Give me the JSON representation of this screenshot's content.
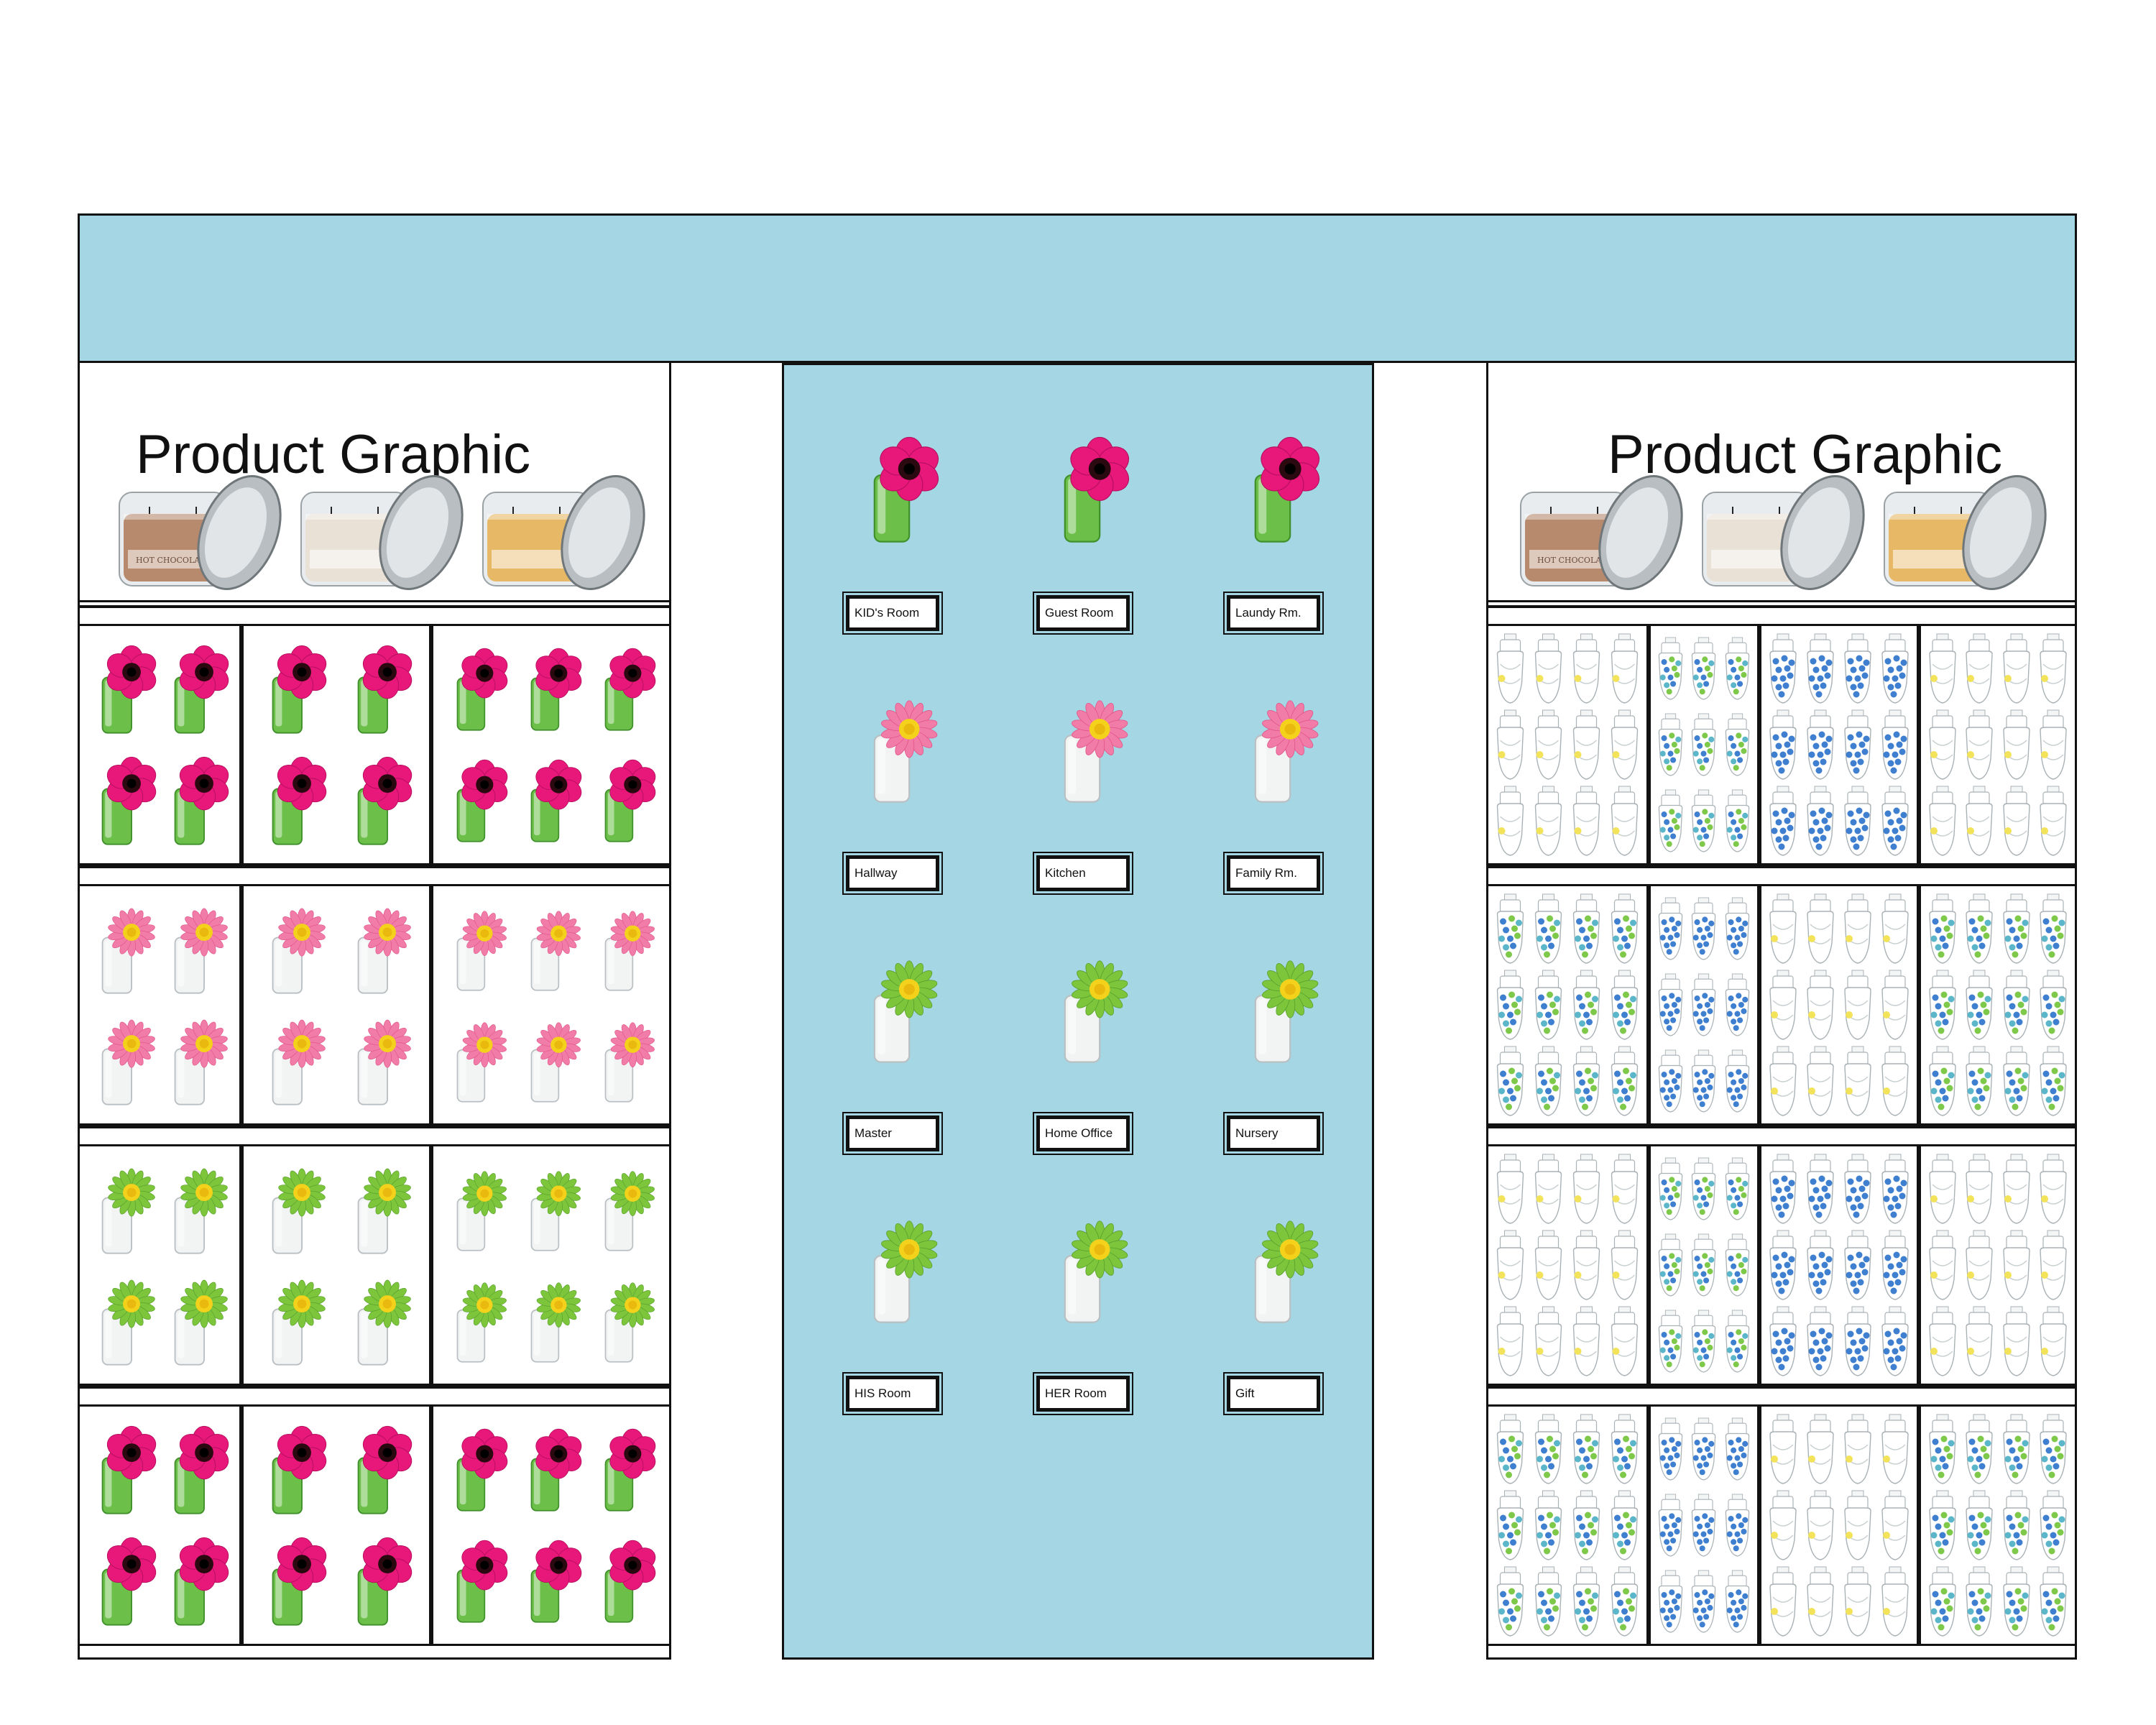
{
  "colors": {
    "panel_blue": "#a4d6e3",
    "outline": "#111111",
    "magenta_flower": "#e8177a",
    "magenta_center": "#2a0a10",
    "pink_flower": "#f27ca8",
    "yellow_center": "#f4d21c",
    "green_flower": "#7dc63c",
    "green_body": "#6cc04a",
    "white_body": "#f2f4f4",
    "refill_blue": "#3f7fd0",
    "refill_green": "#7ec84a",
    "refill_yellow": "#f2e35a"
  },
  "left_graphic": {
    "title": "Product Graphic",
    "jars": [
      {
        "name": "brown-candle-jar",
        "icon": "candle-jar-icon",
        "wax": "#b7896d",
        "label_text": "HOT CHOCOLATE"
      },
      {
        "name": "cream-candle-jar",
        "icon": "candle-jar-icon",
        "wax": "#e9e1d6",
        "label_text": ""
      },
      {
        "name": "gold-candle-jar",
        "icon": "candle-jar-icon",
        "wax": "#e7b966",
        "label_text": ""
      }
    ]
  },
  "right_graphic": {
    "title": "Product Graphic",
    "jars": [
      {
        "name": "brown-candle-jar",
        "icon": "candle-jar-icon",
        "wax": "#b7896d",
        "label_text": "HOT CHOCOLATE"
      },
      {
        "name": "cream-candle-jar",
        "icon": "candle-jar-icon",
        "wax": "#e9e1d6",
        "label_text": ""
      },
      {
        "name": "gold-candle-jar",
        "icon": "candle-jar-icon",
        "wax": "#e7b966",
        "label_text": ""
      }
    ]
  },
  "left_shelves": [
    {
      "variant": "magenta",
      "facings": [
        4,
        4,
        6
      ]
    },
    {
      "variant": "pink",
      "facings": [
        4,
        4,
        6
      ]
    },
    {
      "variant": "green",
      "facings": [
        4,
        4,
        6
      ]
    },
    {
      "variant": "magenta",
      "facings": [
        4,
        4,
        6
      ]
    }
  ],
  "right_shelves": [
    {
      "patterns": [
        "yellow",
        "mixed",
        "blue",
        "yellow"
      ]
    },
    {
      "patterns": [
        "mixed",
        "blue",
        "yellow",
        "mixed"
      ]
    },
    {
      "patterns": [
        "yellow",
        "mixed",
        "blue",
        "yellow"
      ]
    },
    {
      "patterns": [
        "mixed",
        "blue",
        "yellow",
        "mixed"
      ]
    }
  ],
  "center_display": {
    "rows": [
      {
        "variant": "magenta",
        "labels": [
          "KID's Room",
          "Guest Room",
          "Laundy Rm."
        ]
      },
      {
        "variant": "pink",
        "labels": [
          "Hallway",
          "Kitchen",
          "Family Rm."
        ]
      },
      {
        "variant": "green",
        "labels": [
          "Master",
          "Home Office",
          "Nursery"
        ]
      },
      {
        "variant": "green",
        "labels": [
          "HIS Room",
          "HER Room",
          "Gift"
        ]
      }
    ]
  }
}
